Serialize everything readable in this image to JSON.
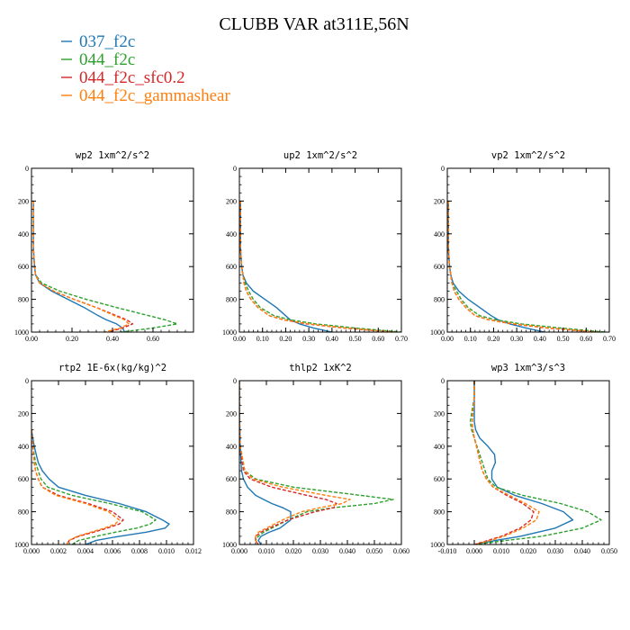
{
  "title": "CLUBB VAR at311E,56N",
  "legend": [
    {
      "label": "037_f2c",
      "color": "#1f77b4"
    },
    {
      "label": "044_f2c",
      "color": "#2ca02c"
    },
    {
      "label": "044_f2c_sfc0.2",
      "color": "#d62728"
    },
    {
      "label": "044_f2c_gammashear",
      "color": "#ff7f0e"
    }
  ],
  "chart_data": [
    {
      "type": "line",
      "title": "wp2  1xm^2/s^2",
      "xlim": [
        0,
        0.8
      ],
      "ylim": [
        1000,
        0
      ],
      "xticks": [
        0,
        0.2,
        0.4,
        0.6
      ],
      "xtick_labels": [
        "0.00",
        "0.20",
        "0.40",
        "0.60"
      ],
      "yticks": [
        0,
        200,
        400,
        600,
        800,
        1000
      ],
      "ytick_labels": [
        "0",
        "200",
        "400",
        "600",
        "800",
        "1000"
      ],
      "y": [
        200,
        300,
        400,
        500,
        600,
        650,
        700,
        750,
        800,
        850,
        900,
        925,
        950,
        975,
        1000
      ],
      "series": [
        {
          "values": [
            0.01,
            0.01,
            0.01,
            0.01,
            0.015,
            0.02,
            0.04,
            0.1,
            0.18,
            0.26,
            0.33,
            0.37,
            0.42,
            0.45,
            0.46
          ],
          "color": "#1f77b4"
        },
        {
          "values": [
            0.01,
            0.01,
            0.01,
            0.01,
            0.015,
            0.02,
            0.05,
            0.14,
            0.27,
            0.42,
            0.58,
            0.66,
            0.72,
            0.6,
            0.44
          ],
          "color": "#2ca02c"
        },
        {
          "values": [
            0.01,
            0.01,
            0.01,
            0.01,
            0.015,
            0.02,
            0.04,
            0.11,
            0.21,
            0.32,
            0.42,
            0.47,
            0.5,
            0.45,
            0.38
          ],
          "color": "#d62728"
        },
        {
          "values": [
            0.01,
            0.01,
            0.01,
            0.01,
            0.015,
            0.02,
            0.04,
            0.11,
            0.21,
            0.32,
            0.41,
            0.46,
            0.48,
            0.44,
            0.36
          ],
          "color": "#ff7f0e"
        }
      ]
    },
    {
      "type": "line",
      "title": "up2  1xm^2/s^2",
      "xlim": [
        0,
        0.7
      ],
      "ylim": [
        1000,
        0
      ],
      "xticks": [
        0,
        0.1,
        0.2,
        0.3,
        0.4,
        0.5,
        0.6,
        0.7
      ],
      "xtick_labels": [
        "0.00",
        "0.10",
        "0.20",
        "0.30",
        "0.40",
        "0.50",
        "0.60",
        "0.70"
      ],
      "yticks": [
        0,
        200,
        400,
        600,
        800,
        1000
      ],
      "ytick_labels": [
        "0",
        "200",
        "400",
        "600",
        "800",
        "1000"
      ],
      "y": [
        200,
        300,
        400,
        500,
        600,
        650,
        700,
        750,
        800,
        850,
        900,
        925,
        950,
        975,
        1000
      ],
      "series": [
        {
          "values": [
            0.005,
            0.005,
            0.005,
            0.005,
            0.01,
            0.015,
            0.03,
            0.06,
            0.11,
            0.16,
            0.2,
            0.22,
            0.26,
            0.32,
            0.4
          ],
          "color": "#1f77b4"
        },
        {
          "values": [
            0.005,
            0.005,
            0.005,
            0.005,
            0.01,
            0.015,
            0.025,
            0.04,
            0.06,
            0.09,
            0.15,
            0.22,
            0.33,
            0.5,
            0.7
          ],
          "color": "#2ca02c"
        },
        {
          "values": [
            0.005,
            0.005,
            0.005,
            0.005,
            0.01,
            0.015,
            0.02,
            0.03,
            0.05,
            0.08,
            0.13,
            0.19,
            0.29,
            0.45,
            0.66
          ],
          "color": "#d62728"
        },
        {
          "values": [
            0.005,
            0.005,
            0.005,
            0.005,
            0.01,
            0.015,
            0.02,
            0.03,
            0.05,
            0.08,
            0.13,
            0.19,
            0.3,
            0.46,
            0.67
          ],
          "color": "#ff7f0e"
        }
      ]
    },
    {
      "type": "line",
      "title": "vp2  1xm^2/s^2",
      "xlim": [
        0,
        0.7
      ],
      "ylim": [
        1000,
        0
      ],
      "xticks": [
        0,
        0.1,
        0.2,
        0.3,
        0.4,
        0.5,
        0.6,
        0.7
      ],
      "xtick_labels": [
        "0.00",
        "0.10",
        "0.20",
        "0.30",
        "0.40",
        "0.50",
        "0.60",
        "0.70"
      ],
      "yticks": [
        0,
        200,
        400,
        600,
        800,
        1000
      ],
      "ytick_labels": [
        "0",
        "200",
        "400",
        "600",
        "800",
        "1000"
      ],
      "y": [
        200,
        300,
        400,
        500,
        600,
        650,
        700,
        750,
        800,
        850,
        900,
        925,
        950,
        975,
        1000
      ],
      "series": [
        {
          "values": [
            0.005,
            0.005,
            0.005,
            0.005,
            0.01,
            0.015,
            0.025,
            0.05,
            0.09,
            0.14,
            0.19,
            0.22,
            0.27,
            0.34,
            0.42
          ],
          "color": "#1f77b4"
        },
        {
          "values": [
            0.005,
            0.005,
            0.005,
            0.005,
            0.01,
            0.015,
            0.02,
            0.04,
            0.06,
            0.09,
            0.14,
            0.21,
            0.32,
            0.49,
            0.68
          ],
          "color": "#2ca02c"
        },
        {
          "values": [
            0.005,
            0.005,
            0.005,
            0.005,
            0.01,
            0.015,
            0.02,
            0.03,
            0.05,
            0.08,
            0.12,
            0.18,
            0.28,
            0.43,
            0.64
          ],
          "color": "#d62728"
        },
        {
          "values": [
            0.005,
            0.005,
            0.005,
            0.005,
            0.01,
            0.015,
            0.02,
            0.03,
            0.05,
            0.08,
            0.12,
            0.18,
            0.29,
            0.44,
            0.65
          ],
          "color": "#ff7f0e"
        }
      ]
    },
    {
      "type": "line",
      "title": "rtp2  1E-6x(kg/kg)^2",
      "xlim": [
        0,
        0.012
      ],
      "ylim": [
        1000,
        0
      ],
      "xticks": [
        0,
        0.002,
        0.004,
        0.006,
        0.008,
        0.01,
        0.012
      ],
      "xtick_labels": [
        "0.000",
        "0.002",
        "0.004",
        "0.006",
        "0.008",
        "0.010",
        "0.012"
      ],
      "yticks": [
        0,
        200,
        400,
        600,
        800,
        1000
      ],
      "ytick_labels": [
        "0",
        "200",
        "400",
        "600",
        "800",
        "1000"
      ],
      "y": [
        300,
        400,
        500,
        550,
        600,
        650,
        700,
        750,
        800,
        850,
        875,
        900,
        925,
        950,
        975,
        1000
      ],
      "series": [
        {
          "values": [
            0.0,
            0.0002,
            0.0005,
            0.0008,
            0.0013,
            0.002,
            0.004,
            0.0065,
            0.0085,
            0.0097,
            0.0102,
            0.0099,
            0.0085,
            0.0065,
            0.0048,
            0.004
          ],
          "color": "#1f77b4"
        },
        {
          "values": [
            0.0,
            0.0001,
            0.0003,
            0.0005,
            0.0007,
            0.0012,
            0.003,
            0.0058,
            0.0082,
            0.0092,
            0.0088,
            0.0078,
            0.0062,
            0.0048,
            0.0035,
            0.003
          ],
          "color": "#2ca02c"
        },
        {
          "values": [
            0.0,
            0.0001,
            0.0002,
            0.0003,
            0.0005,
            0.0008,
            0.002,
            0.0042,
            0.006,
            0.0068,
            0.0065,
            0.0056,
            0.0046,
            0.0035,
            0.0028,
            0.0026
          ],
          "color": "#d62728"
        },
        {
          "values": [
            0.0,
            0.0001,
            0.0002,
            0.0003,
            0.0005,
            0.0008,
            0.0018,
            0.004,
            0.0057,
            0.0065,
            0.0062,
            0.0054,
            0.0044,
            0.0034,
            0.0028,
            0.0026
          ],
          "color": "#ff7f0e"
        }
      ]
    },
    {
      "type": "line",
      "title": "thlp2  1xK^2",
      "xlim": [
        0,
        0.06
      ],
      "ylim": [
        1000,
        0
      ],
      "xticks": [
        0,
        0.01,
        0.02,
        0.03,
        0.04,
        0.05,
        0.06
      ],
      "xtick_labels": [
        "0.000",
        "0.010",
        "0.020",
        "0.030",
        "0.040",
        "0.050",
        "0.060"
      ],
      "yticks": [
        0,
        200,
        400,
        600,
        800,
        1000
      ],
      "ytick_labels": [
        "0",
        "200",
        "400",
        "600",
        "800",
        "1000"
      ],
      "y": [
        0,
        200,
        400,
        550,
        600,
        650,
        700,
        725,
        750,
        775,
        800,
        850,
        900,
        925,
        950,
        975,
        1000
      ],
      "series": [
        {
          "values": [
            0.0,
            0.0,
            0.0003,
            0.0008,
            0.0015,
            0.003,
            0.006,
            0.009,
            0.012,
            0.016,
            0.019,
            0.019,
            0.015,
            0.011,
            0.008,
            0.007,
            0.008
          ],
          "color": "#1f77b4"
        },
        {
          "values": [
            0.0,
            0.0,
            0.0003,
            0.002,
            0.006,
            0.02,
            0.045,
            0.057,
            0.05,
            0.035,
            0.025,
            0.018,
            0.012,
            0.009,
            0.007,
            0.006,
            0.007
          ],
          "color": "#2ca02c"
        },
        {
          "values": [
            0.0,
            0.0,
            0.0003,
            0.0015,
            0.004,
            0.012,
            0.025,
            0.032,
            0.036,
            0.035,
            0.028,
            0.018,
            0.011,
            0.008,
            0.006,
            0.006,
            0.007
          ],
          "color": "#d62728"
        },
        {
          "values": [
            0.0,
            0.0,
            0.0003,
            0.002,
            0.005,
            0.016,
            0.032,
            0.041,
            0.038,
            0.03,
            0.023,
            0.016,
            0.01,
            0.007,
            0.006,
            0.006,
            0.007
          ],
          "color": "#ff7f0e"
        }
      ]
    },
    {
      "type": "line",
      "title": "wp3  1xm^3/s^3",
      "xlim": [
        -0.01,
        0.05
      ],
      "ylim": [
        1000,
        0
      ],
      "xticks": [
        -0.01,
        0,
        0.01,
        0.02,
        0.03,
        0.04,
        0.05
      ],
      "xtick_labels": [
        "-0.010",
        "0.000",
        "0.010",
        "0.020",
        "0.030",
        "0.040",
        "0.050"
      ],
      "yticks": [
        0,
        200,
        400,
        600,
        800,
        1000
      ],
      "ytick_labels": [
        "0",
        "200",
        "400",
        "600",
        "800",
        "1000"
      ],
      "y": [
        0,
        100,
        200,
        250,
        300,
        350,
        400,
        450,
        500,
        550,
        600,
        650,
        700,
        750,
        800,
        850,
        900,
        950,
        975,
        1000
      ],
      "series": [
        {
          "values": [
            0.0,
            0.0,
            0.0,
            0.0,
            0.0005,
            0.002,
            0.005,
            0.0075,
            0.0078,
            0.0065,
            0.0065,
            0.0085,
            0.015,
            0.025,
            0.033,
            0.0365,
            0.03,
            0.017,
            0.008,
            0.0
          ],
          "color": "#1f77b4"
        },
        {
          "values": [
            0.0,
            0.0,
            -0.001,
            -0.0015,
            -0.001,
            0.0,
            0.001,
            0.002,
            0.003,
            0.004,
            0.005,
            0.008,
            0.018,
            0.032,
            0.042,
            0.047,
            0.04,
            0.025,
            0.012,
            0.0
          ],
          "color": "#2ca02c"
        },
        {
          "values": [
            0.0,
            0.0,
            -0.0005,
            -0.0008,
            -0.0005,
            0.0,
            0.0008,
            0.0015,
            0.0022,
            0.003,
            0.0045,
            0.007,
            0.012,
            0.018,
            0.022,
            0.021,
            0.017,
            0.01,
            0.005,
            0.0
          ],
          "color": "#d62728"
        },
        {
          "values": [
            0.0,
            0.0,
            -0.0005,
            -0.0008,
            -0.0005,
            0.0,
            0.0008,
            0.0015,
            0.0022,
            0.003,
            0.0045,
            0.007,
            0.013,
            0.019,
            0.024,
            0.023,
            0.018,
            0.011,
            0.006,
            0.0
          ],
          "color": "#ff7f0e"
        }
      ]
    }
  ]
}
